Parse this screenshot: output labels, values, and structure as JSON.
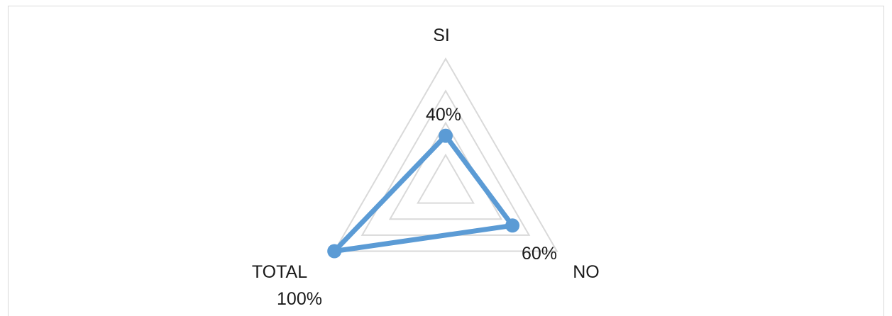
{
  "chart_data": {
    "type": "radar",
    "categories": [
      "SI",
      "NO",
      "TOTAL"
    ],
    "values": [
      40,
      60,
      100
    ],
    "value_labels": [
      "40%",
      "60%",
      "100%"
    ],
    "rlim": [
      0,
      100
    ],
    "grid": true,
    "legend": "none",
    "series_color": "#5b9bd5",
    "grid_color": "#d9d9d9"
  }
}
